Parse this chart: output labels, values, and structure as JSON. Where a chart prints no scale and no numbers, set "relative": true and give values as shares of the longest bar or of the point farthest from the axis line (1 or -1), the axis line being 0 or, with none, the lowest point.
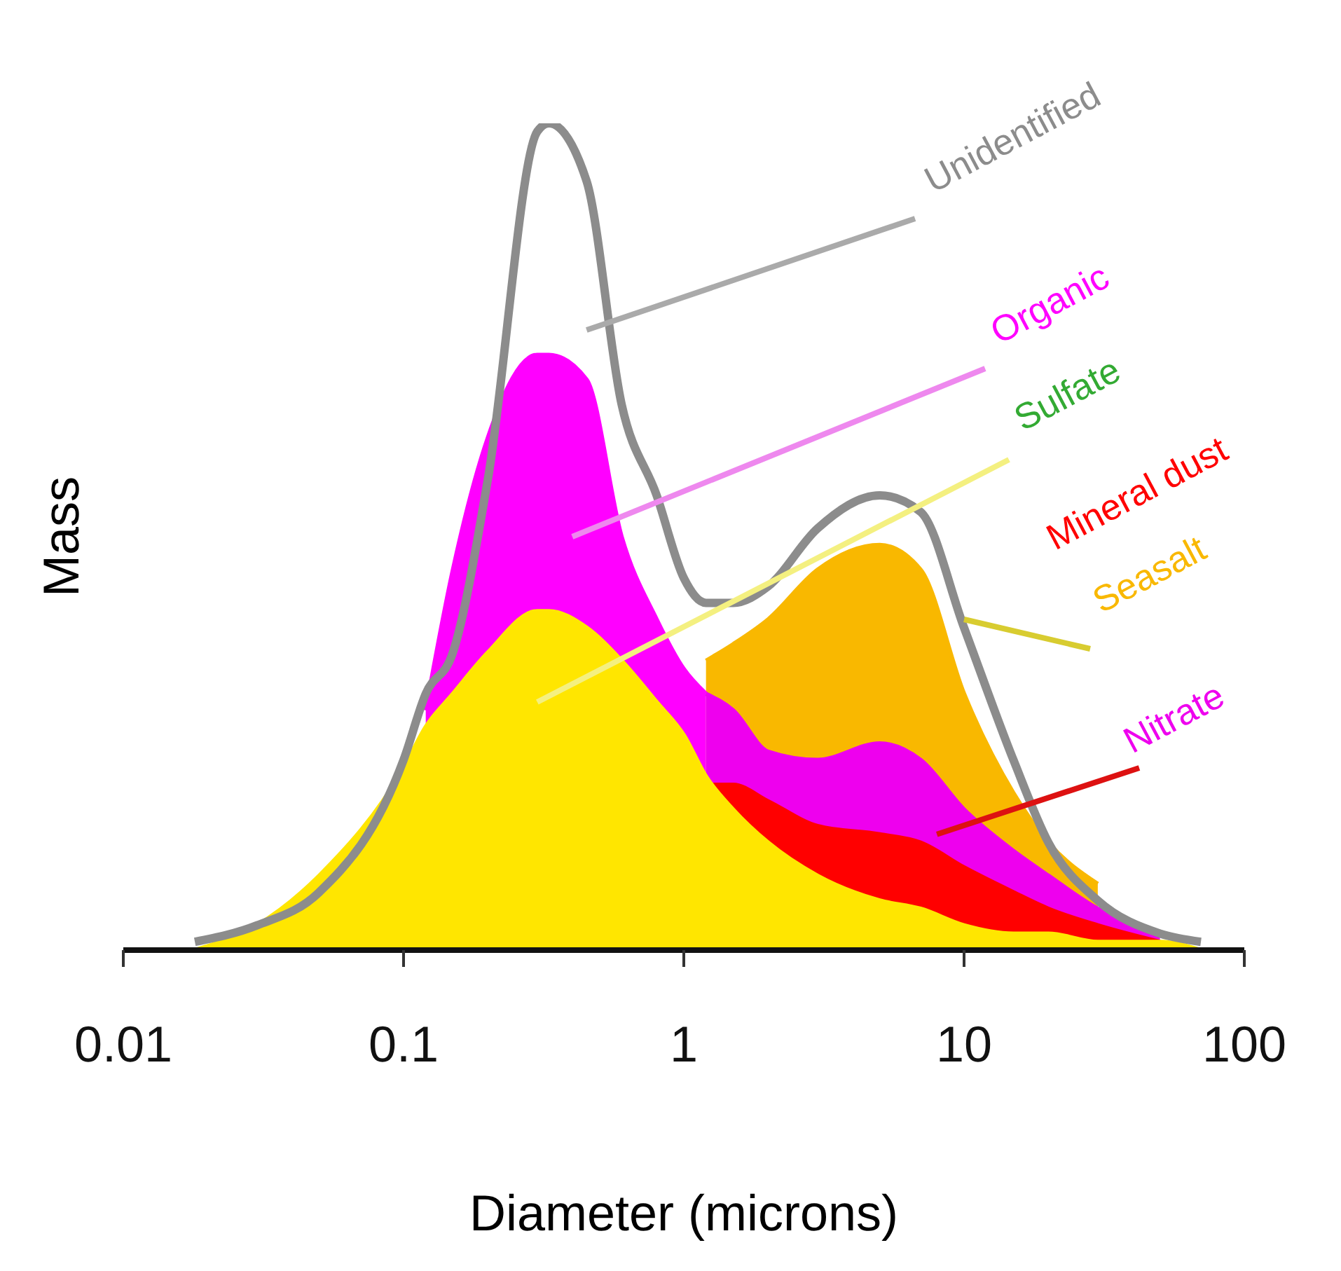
{
  "chart_data": {
    "type": "area",
    "xlabel": "Diameter (microns)",
    "ylabel": "Mass",
    "relative": true,
    "log": "x",
    "grid": false,
    "xlim": [
      0.01,
      100
    ],
    "xticks": [
      0.01,
      0.1,
      1,
      10,
      100
    ],
    "x": [
      0.018,
      0.03,
      0.05,
      0.1,
      0.12,
      0.15,
      0.2,
      0.3,
      0.33,
      0.45,
      0.6,
      0.8,
      1,
      1.2,
      1.5,
      2,
      3,
      5,
      7,
      10,
      15,
      20,
      30,
      50,
      70
    ],
    "series": [
      {
        "name": "Seasalt",
        "color": "#f9b800",
        "values": [
          null,
          null,
          null,
          null,
          null,
          null,
          null,
          null,
          null,
          null,
          null,
          null,
          null,
          0.35,
          0.37,
          0.4,
          0.46,
          0.49,
          0.46,
          0.31,
          0.19,
          0.13,
          0.08,
          null,
          null
        ]
      },
      {
        "name": "Organic",
        "color": "#ff00ff",
        "values": [
          null,
          null,
          null,
          null,
          0.29,
          0.46,
          0.62,
          0.72,
          0.72,
          0.69,
          0.5,
          0.4,
          0.34,
          0.31,
          null,
          null,
          null,
          null,
          null,
          null,
          null,
          null,
          null,
          null,
          null
        ]
      },
      {
        "name": "Nitrate",
        "color": "#ee00ee",
        "values": [
          null,
          null,
          null,
          null,
          null,
          null,
          null,
          null,
          null,
          null,
          null,
          null,
          null,
          0.31,
          0.29,
          0.24,
          0.23,
          0.25,
          0.23,
          0.17,
          0.12,
          0.09,
          0.05,
          0.02,
          null
        ]
      },
      {
        "name": "Mineral dust",
        "color": "#ff0000",
        "values": [
          null,
          null,
          null,
          null,
          null,
          null,
          null,
          null,
          null,
          null,
          null,
          null,
          null,
          0.2,
          0.2,
          0.18,
          0.15,
          0.14,
          0.13,
          0.1,
          0.07,
          0.05,
          0.03,
          0.01,
          null
        ]
      },
      {
        "name": "Sulfate",
        "color": "#ffe600",
        "values": [
          0,
          0.03,
          0.09,
          0.22,
          0.27,
          0.31,
          0.36,
          0.41,
          0.41,
          0.39,
          0.35,
          0.3,
          0.26,
          0.21,
          0.17,
          0.13,
          0.09,
          0.06,
          0.05,
          0.03,
          0.02,
          0.02,
          0.01,
          0.01,
          0
        ]
      },
      {
        "name": "Unidentified",
        "type": "line",
        "color": "#8c8c8c",
        "values": [
          0.01,
          0.03,
          0.07,
          0.23,
          0.31,
          0.36,
          0.57,
          0.99,
          1,
          0.93,
          0.66,
          0.55,
          0.45,
          0.42,
          0.42,
          0.44,
          0.51,
          0.55,
          0.53,
          0.39,
          0.23,
          0.13,
          0.06,
          0.02,
          0.01
        ]
      }
    ]
  }
}
